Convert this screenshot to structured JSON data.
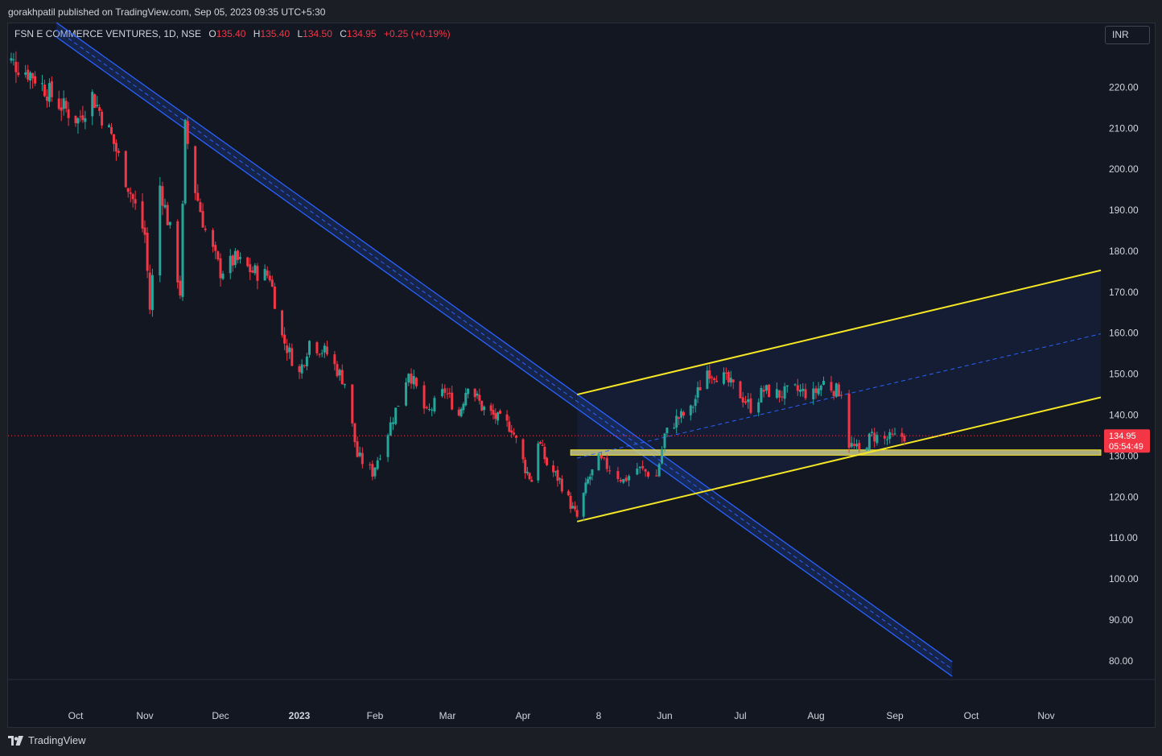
{
  "header": {
    "published_text": "gorakhpatil published on TradingView.com, Sep 05, 2023 09:35 UTC+5:30"
  },
  "legend": {
    "symbol": "FSN E COMMERCE VENTURES, 1D, NSE",
    "o_label": "O",
    "o_value": "135.40",
    "h_label": "H",
    "h_value": "135.40",
    "l_label": "L",
    "l_value": "134.50",
    "c_label": "C",
    "c_value": "134.95",
    "change": "+0.25 (+0.19%)"
  },
  "currency_button": "INR",
  "price_tag": {
    "price": "134.95",
    "countdown": "05:54:49"
  },
  "footer": {
    "brand": "TradingView",
    "logo_icon": "tradingview-logo-icon"
  },
  "colors": {
    "up": "#26a69a",
    "down": "#f23645",
    "channel_yellow": "#f5e626",
    "trend_blue": "#2962ff",
    "background": "#131722",
    "text": "#d1d4dc"
  },
  "chart_data": {
    "type": "candlestick",
    "y_axis_ticks": [
      "220.00",
      "210.00",
      "200.00",
      "190.00",
      "180.00",
      "170.00",
      "160.00",
      "150.00",
      "140.00",
      "130.00",
      "120.00",
      "110.00",
      "100.00",
      "90.00",
      "80.00"
    ],
    "ylim": [
      75,
      232
    ],
    "x_axis_labels": [
      {
        "label": "Oct",
        "date": "2022-10-03"
      },
      {
        "label": "Nov",
        "date": "2022-11-01"
      },
      {
        "label": "Dec",
        "date": "2022-12-01"
      },
      {
        "label": "2023",
        "date": "2023-01-02"
      },
      {
        "label": "Feb",
        "date": "2023-02-01"
      },
      {
        "label": "Mar",
        "date": "2023-03-01"
      },
      {
        "label": "Apr",
        "date": "2023-04-03"
      },
      {
        "label": "8",
        "date": "2023-05-08"
      },
      {
        "label": "Jun",
        "date": "2023-06-01"
      },
      {
        "label": "Jul",
        "date": "2023-07-03"
      },
      {
        "label": "Aug",
        "date": "2023-08-01"
      },
      {
        "label": "Sep",
        "date": "2023-09-01"
      },
      {
        "label": "Oct",
        "date": "2023-10-03"
      },
      {
        "label": "Nov",
        "date": "2023-11-01"
      }
    ],
    "last_price": 134.95,
    "price_path": [
      {
        "date": "2022-09-01",
        "close": 228
      },
      {
        "date": "2022-09-15",
        "close": 223
      },
      {
        "date": "2022-09-26",
        "close": 216
      },
      {
        "date": "2022-10-04",
        "close": 212
      },
      {
        "date": "2022-10-10",
        "close": 218
      },
      {
        "date": "2022-10-18",
        "close": 208
      },
      {
        "date": "2022-10-25",
        "close": 196
      },
      {
        "date": "2022-11-01",
        "close": 184
      },
      {
        "date": "2022-11-03",
        "close": 166
      },
      {
        "date": "2022-11-07",
        "close": 196
      },
      {
        "date": "2022-11-11",
        "close": 185
      },
      {
        "date": "2022-11-15",
        "close": 170
      },
      {
        "date": "2022-11-17",
        "close": 210
      },
      {
        "date": "2022-11-21",
        "close": 195
      },
      {
        "date": "2022-11-25",
        "close": 185
      },
      {
        "date": "2022-12-01",
        "close": 175
      },
      {
        "date": "2022-12-07",
        "close": 178
      },
      {
        "date": "2022-12-14",
        "close": 175
      },
      {
        "date": "2022-12-21",
        "close": 174
      },
      {
        "date": "2022-12-26",
        "close": 159
      },
      {
        "date": "2023-01-02",
        "close": 150
      },
      {
        "date": "2023-01-06",
        "close": 158
      },
      {
        "date": "2023-01-13",
        "close": 155
      },
      {
        "date": "2023-01-20",
        "close": 148
      },
      {
        "date": "2023-01-25",
        "close": 130
      },
      {
        "date": "2023-01-31",
        "close": 126
      },
      {
        "date": "2023-02-06",
        "close": 136
      },
      {
        "date": "2023-02-10",
        "close": 143
      },
      {
        "date": "2023-02-14",
        "close": 151
      },
      {
        "date": "2023-02-21",
        "close": 140
      },
      {
        "date": "2023-02-28",
        "close": 146
      },
      {
        "date": "2023-03-06",
        "close": 140
      },
      {
        "date": "2023-03-10",
        "close": 148
      },
      {
        "date": "2023-03-16",
        "close": 142
      },
      {
        "date": "2023-03-23",
        "close": 139
      },
      {
        "date": "2023-03-29",
        "close": 137
      },
      {
        "date": "2023-04-04",
        "close": 127
      },
      {
        "date": "2023-04-07",
        "close": 124
      },
      {
        "date": "2023-04-10",
        "close": 134
      },
      {
        "date": "2023-04-14",
        "close": 128
      },
      {
        "date": "2023-04-20",
        "close": 124
      },
      {
        "date": "2023-04-26",
        "close": 117
      },
      {
        "date": "2023-04-28",
        "close": 115
      },
      {
        "date": "2023-05-03",
        "close": 124
      },
      {
        "date": "2023-05-08",
        "close": 129
      },
      {
        "date": "2023-05-12",
        "close": 127
      },
      {
        "date": "2023-05-17",
        "close": 124
      },
      {
        "date": "2023-05-22",
        "close": 127
      },
      {
        "date": "2023-05-29",
        "close": 125
      },
      {
        "date": "2023-06-01",
        "close": 135
      },
      {
        "date": "2023-06-06",
        "close": 139
      },
      {
        "date": "2023-06-12",
        "close": 141
      },
      {
        "date": "2023-06-16",
        "close": 147
      },
      {
        "date": "2023-06-19",
        "close": 151
      },
      {
        "date": "2023-06-26",
        "close": 149
      },
      {
        "date": "2023-07-03",
        "close": 145
      },
      {
        "date": "2023-07-07",
        "close": 142
      },
      {
        "date": "2023-07-12",
        "close": 146
      },
      {
        "date": "2023-07-18",
        "close": 145
      },
      {
        "date": "2023-07-24",
        "close": 146
      },
      {
        "date": "2023-07-31",
        "close": 145
      },
      {
        "date": "2023-08-04",
        "close": 148
      },
      {
        "date": "2023-08-09",
        "close": 146
      },
      {
        "date": "2023-08-11",
        "close": 146
      },
      {
        "date": "2023-08-14",
        "close": 133
      },
      {
        "date": "2023-08-18",
        "close": 131
      },
      {
        "date": "2023-08-23",
        "close": 135
      },
      {
        "date": "2023-08-28",
        "close": 134
      },
      {
        "date": "2023-09-01",
        "close": 134.5
      },
      {
        "date": "2023-09-05",
        "close": 134.95
      }
    ],
    "drawings": {
      "descending_channel": {
        "line_a": [
          {
            "date": "2022-09-25",
            "price": 234
          },
          {
            "date": "2023-09-25",
            "price": 78
          }
        ],
        "line_b": [
          {
            "date": "2022-09-25",
            "price": 232
          },
          {
            "date": "2023-09-25",
            "price": 75
          }
        ]
      },
      "ascending_channel": {
        "upper": [
          {
            "date": "2023-04-28",
            "price": 145
          },
          {
            "date": "2023-11-20",
            "price": 175
          }
        ],
        "middle": [
          {
            "date": "2023-04-28",
            "price": 129.5
          },
          {
            "date": "2023-11-20",
            "price": 159.5
          }
        ],
        "lower": [
          {
            "date": "2023-04-28",
            "price": 114
          },
          {
            "date": "2023-11-20",
            "price": 144
          }
        ]
      },
      "support_zone": {
        "from_date": "2023-04-28",
        "top": 131.5,
        "bottom": 130.2
      }
    }
  }
}
